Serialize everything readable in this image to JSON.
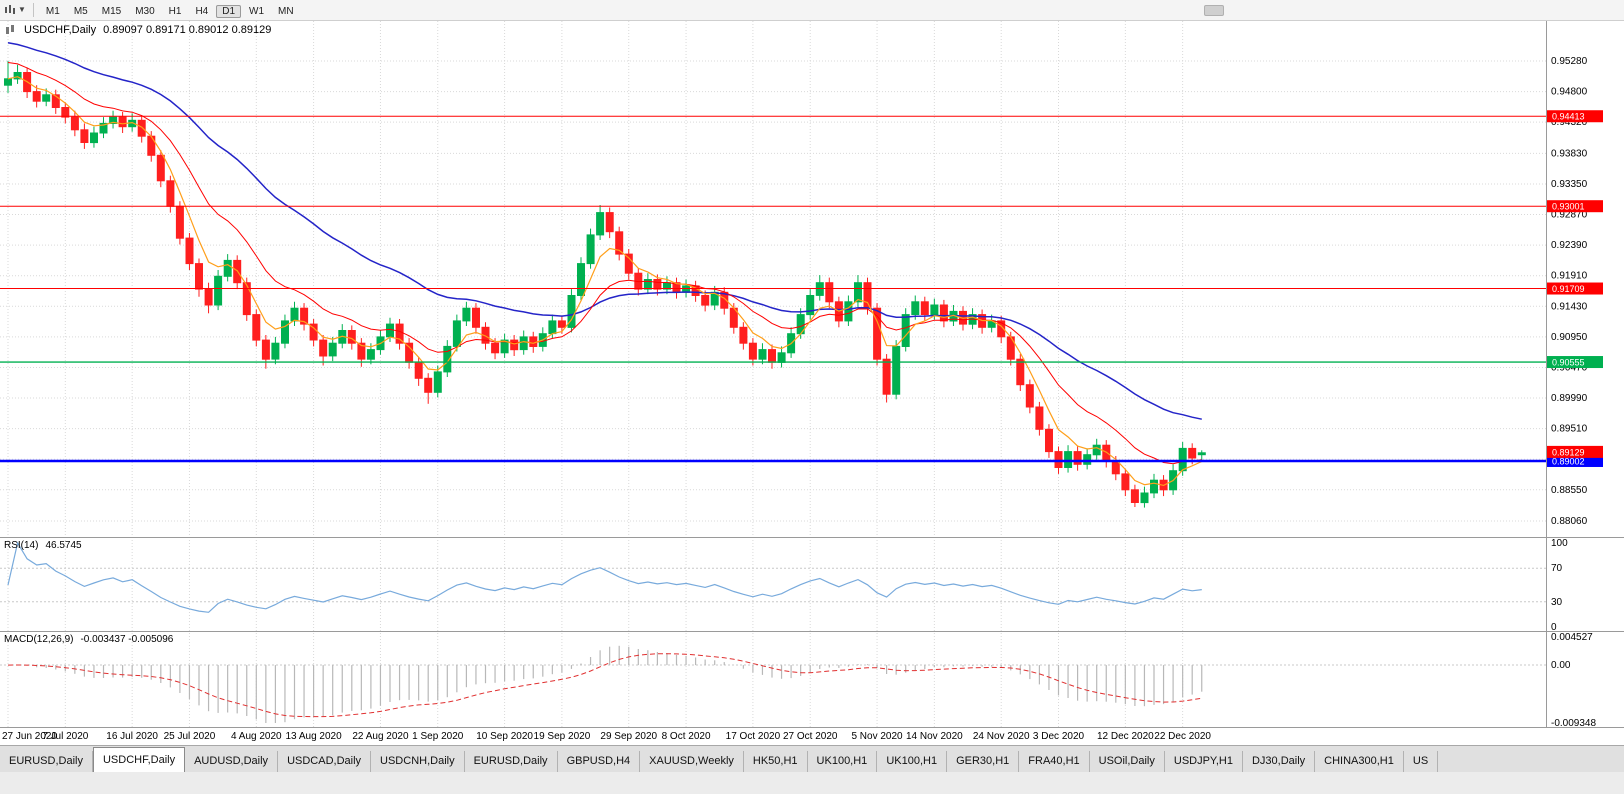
{
  "toolbar": {
    "timeframes": [
      {
        "label": "M1",
        "active": false
      },
      {
        "label": "M5",
        "active": false
      },
      {
        "label": "M15",
        "active": false
      },
      {
        "label": "M30",
        "active": false
      },
      {
        "label": "H1",
        "active": false
      },
      {
        "label": "H4",
        "active": false
      },
      {
        "label": "D1",
        "active": true
      },
      {
        "label": "W1",
        "active": false
      },
      {
        "label": "MN",
        "active": false
      }
    ]
  },
  "chart": {
    "symbol_title": "USDCHF,Daily",
    "ohlc_text": "0.89097 0.89171 0.89012 0.89129",
    "open": "0.89097",
    "high": "0.89171",
    "low": "0.89012",
    "close": "0.89129"
  },
  "colors": {
    "candle_up": "#00b050",
    "candle_down": "#ff1f1f",
    "ma_fast": "#ff9f1a",
    "ma_mid": "#ff0000",
    "ma_slow": "#2424c8",
    "rsi_line": "#78aadc",
    "macd_hist": "#b8b8b8",
    "macd_signal": "#e03030",
    "grid": "#d9d9d9"
  },
  "chart_data": {
    "type": "candlestick",
    "symbol": "USDCHF",
    "timeframe": "Daily",
    "x_labels": [
      "27 Jun 2020",
      "7 Jul 2020",
      "16 Jul 2020",
      "25 Jul 2020",
      "4 Aug 2020",
      "13 Aug 2020",
      "22 Aug 2020",
      "1 Sep 2020",
      "10 Sep 2020",
      "19 Sep 2020",
      "29 Sep 2020",
      "8 Oct 2020",
      "17 Oct 2020",
      "27 Oct 2020",
      "5 Nov 2020",
      "14 Nov 2020",
      "24 Nov 2020",
      "3 Dec 2020",
      "12 Dec 2020",
      "22 Dec 2020"
    ],
    "price_axis_labels": [
      "0.95280",
      "0.94800",
      "0.94320",
      "0.93830",
      "0.93350",
      "0.92870",
      "0.92390",
      "0.91910",
      "0.91430",
      "0.90950",
      "0.90470",
      "0.89990",
      "0.89510",
      "0.89030",
      "0.88550",
      "0.88060"
    ],
    "candles": [
      [
        0.949,
        0.9528,
        0.9478,
        0.95
      ],
      [
        0.95,
        0.9522,
        0.9492,
        0.951
      ],
      [
        0.951,
        0.9518,
        0.947,
        0.948
      ],
      [
        0.948,
        0.949,
        0.9455,
        0.9465
      ],
      [
        0.9465,
        0.9485,
        0.9457,
        0.9475
      ],
      [
        0.9475,
        0.9483,
        0.9445,
        0.9455
      ],
      [
        0.9455,
        0.9463,
        0.943,
        0.944
      ],
      [
        0.944,
        0.945,
        0.941,
        0.942
      ],
      [
        0.942,
        0.943,
        0.939,
        0.94
      ],
      [
        0.94,
        0.9425,
        0.9392,
        0.9415
      ],
      [
        0.9415,
        0.944,
        0.9407,
        0.943
      ],
      [
        0.943,
        0.945,
        0.9422,
        0.944
      ],
      [
        0.944,
        0.9448,
        0.9415,
        0.9425
      ],
      [
        0.9425,
        0.9446,
        0.9417,
        0.9435
      ],
      [
        0.9435,
        0.9443,
        0.94,
        0.941
      ],
      [
        0.941,
        0.9418,
        0.937,
        0.938
      ],
      [
        0.938,
        0.9388,
        0.933,
        0.934
      ],
      [
        0.934,
        0.9348,
        0.929,
        0.93
      ],
      [
        0.93,
        0.9308,
        0.924,
        0.925
      ],
      [
        0.925,
        0.9258,
        0.92,
        0.921
      ],
      [
        0.921,
        0.9218,
        0.9158,
        0.917
      ],
      [
        0.917,
        0.918,
        0.9132,
        0.9145
      ],
      [
        0.9145,
        0.92,
        0.9137,
        0.919
      ],
      [
        0.919,
        0.9225,
        0.9182,
        0.9215
      ],
      [
        0.9215,
        0.9223,
        0.917,
        0.918
      ],
      [
        0.918,
        0.9188,
        0.912,
        0.913
      ],
      [
        0.913,
        0.9138,
        0.908,
        0.909
      ],
      [
        0.909,
        0.9098,
        0.9045,
        0.906
      ],
      [
        0.906,
        0.9095,
        0.9052,
        0.9085
      ],
      [
        0.9085,
        0.913,
        0.9077,
        0.912
      ],
      [
        0.912,
        0.915,
        0.9112,
        0.914
      ],
      [
        0.914,
        0.9148,
        0.9105,
        0.9115
      ],
      [
        0.9115,
        0.9123,
        0.908,
        0.909
      ],
      [
        0.909,
        0.9098,
        0.905,
        0.9065
      ],
      [
        0.9065,
        0.9095,
        0.9057,
        0.9085
      ],
      [
        0.9085,
        0.9115,
        0.9077,
        0.9105
      ],
      [
        0.9105,
        0.9113,
        0.9075,
        0.9085
      ],
      [
        0.9085,
        0.9093,
        0.9048,
        0.906
      ],
      [
        0.906,
        0.9085,
        0.9052,
        0.9075
      ],
      [
        0.9075,
        0.9105,
        0.9067,
        0.9095
      ],
      [
        0.9095,
        0.9125,
        0.9087,
        0.9115
      ],
      [
        0.9115,
        0.9123,
        0.9075,
        0.9085
      ],
      [
        0.9085,
        0.9093,
        0.9045,
        0.9055
      ],
      [
        0.9055,
        0.9063,
        0.9018,
        0.903
      ],
      [
        0.903,
        0.9038,
        0.899,
        0.9008
      ],
      [
        0.9008,
        0.905,
        0.9,
        0.904
      ],
      [
        0.904,
        0.909,
        0.9032,
        0.908
      ],
      [
        0.908,
        0.913,
        0.9072,
        0.912
      ],
      [
        0.912,
        0.915,
        0.9112,
        0.914
      ],
      [
        0.914,
        0.9148,
        0.91,
        0.911
      ],
      [
        0.911,
        0.9118,
        0.9075,
        0.9085
      ],
      [
        0.9085,
        0.9093,
        0.906,
        0.907
      ],
      [
        0.907,
        0.91,
        0.9062,
        0.909
      ],
      [
        0.909,
        0.9098,
        0.9065,
        0.9075
      ],
      [
        0.9075,
        0.9105,
        0.9067,
        0.9095
      ],
      [
        0.9095,
        0.9103,
        0.907,
        0.908
      ],
      [
        0.908,
        0.911,
        0.9072,
        0.91
      ],
      [
        0.91,
        0.913,
        0.9092,
        0.912
      ],
      [
        0.912,
        0.9128,
        0.91,
        0.911
      ],
      [
        0.911,
        0.917,
        0.9102,
        0.916
      ],
      [
        0.916,
        0.922,
        0.9152,
        0.921
      ],
      [
        0.921,
        0.9265,
        0.9202,
        0.9255
      ],
      [
        0.9255,
        0.9302,
        0.9247,
        0.929
      ],
      [
        0.929,
        0.9298,
        0.925,
        0.926
      ],
      [
        0.926,
        0.9268,
        0.9215,
        0.9225
      ],
      [
        0.9225,
        0.9233,
        0.9185,
        0.9195
      ],
      [
        0.9195,
        0.9203,
        0.916,
        0.917
      ],
      [
        0.917,
        0.9195,
        0.9162,
        0.9185
      ],
      [
        0.9185,
        0.9193,
        0.916,
        0.917
      ],
      [
        0.917,
        0.919,
        0.9162,
        0.918
      ],
      [
        0.918,
        0.9188,
        0.9155,
        0.9165
      ],
      [
        0.9165,
        0.9185,
        0.9157,
        0.9175
      ],
      [
        0.9175,
        0.9183,
        0.915,
        0.916
      ],
      [
        0.916,
        0.9168,
        0.9135,
        0.9145
      ],
      [
        0.9145,
        0.9175,
        0.9137,
        0.9165
      ],
      [
        0.9165,
        0.9173,
        0.913,
        0.914
      ],
      [
        0.914,
        0.9148,
        0.91,
        0.911
      ],
      [
        0.911,
        0.9118,
        0.9075,
        0.9085
      ],
      [
        0.9085,
        0.9093,
        0.905,
        0.906
      ],
      [
        0.906,
        0.9085,
        0.9052,
        0.9075
      ],
      [
        0.9075,
        0.9083,
        0.9045,
        0.9055
      ],
      [
        0.9055,
        0.908,
        0.9047,
        0.907
      ],
      [
        0.907,
        0.911,
        0.9062,
        0.91
      ],
      [
        0.91,
        0.914,
        0.9092,
        0.913
      ],
      [
        0.913,
        0.917,
        0.9122,
        0.916
      ],
      [
        0.916,
        0.9192,
        0.9152,
        0.918
      ],
      [
        0.918,
        0.9188,
        0.914,
        0.915
      ],
      [
        0.915,
        0.9158,
        0.911,
        0.912
      ],
      [
        0.912,
        0.916,
        0.9112,
        0.915
      ],
      [
        0.915,
        0.9192,
        0.9142,
        0.918
      ],
      [
        0.918,
        0.9188,
        0.913,
        0.914
      ],
      [
        0.914,
        0.9148,
        0.905,
        0.906
      ],
      [
        0.906,
        0.9068,
        0.8992,
        0.9005
      ],
      [
        0.9005,
        0.909,
        0.8997,
        0.908
      ],
      [
        0.908,
        0.914,
        0.9072,
        0.913
      ],
      [
        0.913,
        0.916,
        0.9122,
        0.915
      ],
      [
        0.915,
        0.9158,
        0.912,
        0.913
      ],
      [
        0.913,
        0.9155,
        0.9122,
        0.9145
      ],
      [
        0.9145,
        0.9153,
        0.911,
        0.912
      ],
      [
        0.912,
        0.9145,
        0.9112,
        0.9135
      ],
      [
        0.9135,
        0.9143,
        0.9105,
        0.9115
      ],
      [
        0.9115,
        0.914,
        0.9107,
        0.913
      ],
      [
        0.913,
        0.9138,
        0.91,
        0.911
      ],
      [
        0.911,
        0.913,
        0.9102,
        0.912
      ],
      [
        0.912,
        0.9128,
        0.9085,
        0.9095
      ],
      [
        0.9095,
        0.9103,
        0.905,
        0.906
      ],
      [
        0.906,
        0.9068,
        0.901,
        0.902
      ],
      [
        0.902,
        0.9028,
        0.8975,
        0.8985
      ],
      [
        0.8985,
        0.8993,
        0.894,
        0.895
      ],
      [
        0.895,
        0.8958,
        0.8905,
        0.8915
      ],
      [
        0.8915,
        0.8923,
        0.888,
        0.889
      ],
      [
        0.889,
        0.8925,
        0.8882,
        0.8915
      ],
      [
        0.8915,
        0.8923,
        0.8885,
        0.8895
      ],
      [
        0.8895,
        0.892,
        0.8887,
        0.891
      ],
      [
        0.891,
        0.8935,
        0.8902,
        0.8925
      ],
      [
        0.8925,
        0.8933,
        0.889,
        0.89
      ],
      [
        0.89,
        0.8908,
        0.887,
        0.888
      ],
      [
        0.888,
        0.8888,
        0.8845,
        0.8855
      ],
      [
        0.8855,
        0.8863,
        0.8828,
        0.8835
      ],
      [
        0.8835,
        0.886,
        0.8827,
        0.885
      ],
      [
        0.885,
        0.888,
        0.8842,
        0.887
      ],
      [
        0.887,
        0.8878,
        0.8845,
        0.8855
      ],
      [
        0.8855,
        0.8895,
        0.8847,
        0.8885
      ],
      [
        0.8885,
        0.893,
        0.8877,
        0.892
      ],
      [
        0.892,
        0.8928,
        0.8895,
        0.8905
      ],
      [
        0.891,
        0.8917,
        0.8901,
        0.8913
      ]
    ],
    "moving_averages": [
      {
        "name": "fast",
        "period": 5,
        "color": "#ff9f1a",
        "width": 1.2,
        "seed": null
      },
      {
        "name": "medium",
        "period": 13,
        "color": "#ff0000",
        "width": 1,
        "seed": 0.953
      },
      {
        "name": "slow",
        "period": 34,
        "color": "#2424c8",
        "width": 1.5,
        "seed": 0.956
      }
    ],
    "horizontal_lines": [
      {
        "price": 0.94413,
        "label": "0.94413",
        "color": "#ff0000",
        "width": 1
      },
      {
        "price": 0.93001,
        "label": "0.93001",
        "color": "#ff0000",
        "width": 1
      },
      {
        "price": 0.91709,
        "label": "0.91709",
        "color": "#ff0000",
        "width": 1
      },
      {
        "price": 0.90555,
        "label": "0.90555",
        "color": "#00b050",
        "width": 1.3
      },
      {
        "price": 0.89002,
        "label": "0.89002",
        "color": "#0000ff",
        "width": 2.5
      }
    ],
    "current_price": {
      "value": 0.89129,
      "label": "0.89129",
      "color": "#ff0000"
    },
    "rsi": {
      "label": "RSI(14)",
      "value": "46.5745",
      "period": 14,
      "levels": [
        70,
        30
      ],
      "axis_labels": [
        "100",
        "70",
        "30",
        "0"
      ]
    },
    "macd": {
      "label": "MACD(12,26,9)",
      "values": "-0.003437 -0.005096",
      "fast": 12,
      "slow": 26,
      "signal": 9,
      "axis_labels": [
        "0.004527",
        "0.00",
        "-0.009348"
      ],
      "scale_max": 0.004527,
      "scale_min": -0.009348
    }
  },
  "tabs": [
    "EURUSD,Daily",
    "USDCHF,Daily",
    "AUDUSD,Daily",
    "USDCAD,Daily",
    "USDCNH,Daily",
    "EURUSD,Daily",
    "GBPUSD,H4",
    "XAUUSD,Weekly",
    "HK50,H1",
    "UK100,H1",
    "UK100,H1",
    "GER30,H1",
    "FRA40,H1",
    "USOil,Daily",
    "USDJPY,H1",
    "DJ30,Daily",
    "CHINA300,H1",
    "US"
  ],
  "active_tab_index": 1
}
